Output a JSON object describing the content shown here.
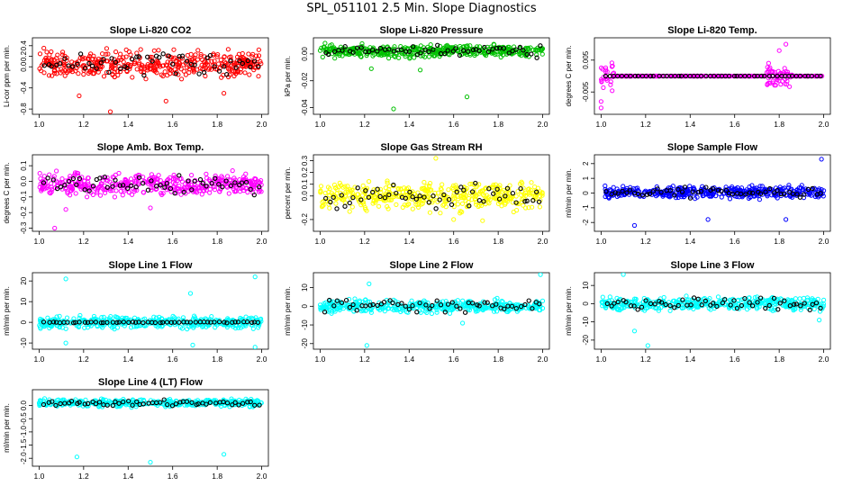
{
  "page_title": "SPL_051101  2.5 Min. Slope Diagnostics",
  "x_ticks": [
    "1.0",
    "1.2",
    "1.4",
    "1.6",
    "1.8",
    "2.0"
  ],
  "colors": {
    "black": "#000000"
  },
  "chart_data": [
    {
      "type": "scatter",
      "title": "Slope Li-820 CO2",
      "ylabel": "Li-cor ppm per min.",
      "xlim": [
        0.97,
        2.03
      ],
      "ylim": [
        -0.9,
        0.55
      ],
      "yticks": [
        "-0.8",
        "-0.4",
        "0.0",
        "0.2",
        "0.4"
      ],
      "ytick_values": [
        -0.8,
        -0.4,
        0.0,
        0.2,
        0.4
      ],
      "color": "#ff0000",
      "spread": 0.22,
      "center": 0.05,
      "outliers": [
        [
          1.18,
          -0.55
        ],
        [
          1.32,
          -0.85
        ],
        [
          1.57,
          -0.65
        ],
        [
          1.83,
          -0.5
        ]
      ]
    },
    {
      "type": "scatter",
      "title": "Slope Li-820 Pressure",
      "ylabel": "kPa per min.",
      "xlim": [
        0.97,
        2.03
      ],
      "ylim": [
        -0.045,
        0.012
      ],
      "yticks": [
        "-0.04",
        "-0.02",
        "0.00"
      ],
      "ytick_values": [
        -0.04,
        -0.02,
        0.0
      ],
      "color": "#00c000",
      "spread": 0.004,
      "center": 0.002,
      "outliers": [
        [
          1.33,
          -0.041
        ],
        [
          1.66,
          -0.032
        ],
        [
          1.23,
          -0.011
        ],
        [
          1.45,
          -0.012
        ]
      ]
    },
    {
      "type": "scatter",
      "title": "Slope Li-820 Temp.",
      "ylabel": "degrees C per min.",
      "xlim": [
        0.97,
        2.03
      ],
      "ylim": [
        -0.012,
        0.012
      ],
      "yticks": [
        "-0.005",
        "0.005"
      ],
      "ytick_values": [
        -0.005,
        0.005
      ],
      "color": "#ff00ff",
      "spread": 0.0,
      "center": 0.0,
      "outliers": [
        [
          1.0,
          -0.01
        ],
        [
          1.83,
          0.01
        ],
        [
          1.0,
          -0.008
        ],
        [
          1.8,
          0.008
        ]
      ]
    },
    {
      "type": "scatter",
      "title": "Slope Amb. Box Temp.",
      "ylabel": "degrees C per min.",
      "xlim": [
        0.97,
        2.03
      ],
      "ylim": [
        -0.32,
        0.17
      ],
      "yticks": [
        "-0.3",
        "-0.2",
        "-0.1",
        "0.0",
        "0.1"
      ],
      "ytick_values": [
        -0.3,
        -0.2,
        -0.1,
        0.0,
        0.1
      ],
      "color": "#ff00ff",
      "spread": 0.06,
      "center": -0.02,
      "outliers": [
        [
          1.07,
          -0.3
        ],
        [
          1.12,
          -0.18
        ],
        [
          1.5,
          -0.17
        ]
      ]
    },
    {
      "type": "scatter",
      "title": "Slope Gas Stream RH",
      "ylabel": "percent per min.",
      "xlim": [
        0.97,
        2.03
      ],
      "ylim": [
        -0.3,
        0.35
      ],
      "yticks": [
        "-0.2",
        "0.0",
        "0.1",
        "0.2",
        "0.3"
      ],
      "ytick_values": [
        -0.2,
        0.0,
        0.1,
        0.2,
        0.3
      ],
      "color": "#ffff00",
      "spread": 0.1,
      "center": 0.0,
      "outliers": [
        [
          1.52,
          0.32
        ],
        [
          1.73,
          -0.21
        ],
        [
          1.6,
          -0.2
        ]
      ]
    },
    {
      "type": "scatter",
      "title": "Slope Sample Flow",
      "ylabel": "ml/min per min.",
      "xlim": [
        0.97,
        2.03
      ],
      "ylim": [
        -2.6,
        2.6
      ],
      "yticks": [
        "-2",
        "-1",
        "0",
        "1",
        "2"
      ],
      "ytick_values": [
        -2,
        -1,
        0,
        1,
        2
      ],
      "color": "#0000ff",
      "spread": 0.35,
      "center": 0.05,
      "outliers": [
        [
          1.99,
          2.3
        ],
        [
          1.15,
          -2.2
        ],
        [
          1.48,
          -1.8
        ],
        [
          1.83,
          -1.8
        ]
      ]
    },
    {
      "type": "scatter",
      "title": "Slope Line 1 Flow",
      "ylabel": "ml/min per min.",
      "xlim": [
        0.97,
        2.03
      ],
      "ylim": [
        -13,
        24
      ],
      "yticks": [
        "-10",
        "0",
        "10",
        "20"
      ],
      "ytick_values": [
        -10,
        0,
        10,
        20
      ],
      "color": "#00ffff",
      "spread": 2.5,
      "center": 0.0,
      "outliers": [
        [
          1.12,
          21
        ],
        [
          1.97,
          22
        ],
        [
          1.68,
          14
        ],
        [
          1.12,
          -10
        ],
        [
          1.69,
          -11
        ],
        [
          1.97,
          -12
        ]
      ]
    },
    {
      "type": "scatter",
      "title": "Slope Line 2 Flow",
      "ylabel": "ml/min per min.",
      "xlim": [
        0.97,
        2.03
      ],
      "ylim": [
        -23,
        18
      ],
      "yticks": [
        "-20",
        "-10",
        "0",
        "10"
      ],
      "ytick_values": [
        -20,
        -10,
        0,
        10
      ],
      "color": "#00ffff",
      "spread": 3.0,
      "center": 0.0,
      "outliers": [
        [
          1.21,
          -21
        ],
        [
          1.99,
          17
        ],
        [
          1.64,
          -9
        ],
        [
          1.22,
          12
        ]
      ]
    },
    {
      "type": "scatter",
      "title": "Slope Line 3 Flow",
      "ylabel": "ml/min per min.",
      "xlim": [
        0.97,
        2.03
      ],
      "ylim": [
        -25,
        17
      ],
      "yticks": [
        "-20",
        "-10",
        "0",
        "10"
      ],
      "ytick_values": [
        -20,
        -10,
        0,
        10
      ],
      "color": "#00ffff",
      "spread": 3.0,
      "center": 0.0,
      "outliers": [
        [
          1.21,
          -23
        ],
        [
          1.1,
          16
        ],
        [
          1.98,
          -9
        ],
        [
          1.15,
          -15
        ]
      ]
    },
    {
      "type": "scatter",
      "title": "Slope Line 4 (LT) Flow",
      "ylabel": "ml/min per min.",
      "xlim": [
        0.97,
        2.03
      ],
      "ylim": [
        -2.3,
        0.6
      ],
      "yticks": [
        "-2.0",
        "-1.5",
        "-1.0",
        "-0.5",
        "0.0"
      ],
      "ytick_values": [
        -2.0,
        -1.5,
        -1.0,
        -0.5,
        0.0
      ],
      "color": "#00ffff",
      "spread": 0.12,
      "center": 0.1,
      "outliers": [
        [
          1.17,
          -1.95
        ],
        [
          1.5,
          -2.15
        ],
        [
          1.83,
          -1.85
        ]
      ]
    }
  ]
}
